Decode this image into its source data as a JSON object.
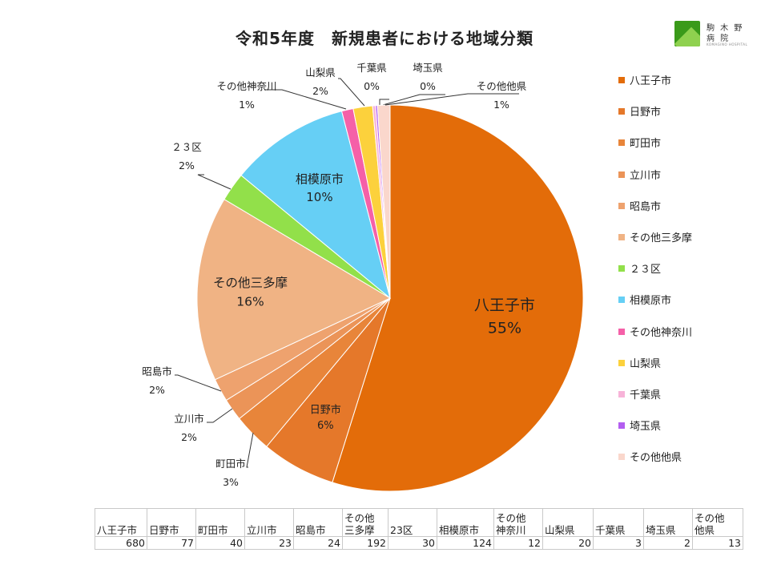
{
  "title": "令和5年度　新規患者における地域分類",
  "logo": {
    "line1": "駒 木 野",
    "line2": "病 院",
    "line3": "KOMAGINO HOSPITAL"
  },
  "chart_data": {
    "type": "pie",
    "title": "令和5年度　新規患者における地域分類",
    "legend_position": "right",
    "slices": [
      {
        "name": "八王子市",
        "value": 680,
        "label": "八王子市",
        "pct_label": "55%",
        "color": "#e36c09"
      },
      {
        "name": "日野市",
        "value": 77,
        "label": "日野市",
        "pct_label": "6%",
        "color": "#e5782a"
      },
      {
        "name": "町田市",
        "value": 40,
        "label": "町田市",
        "pct_label": "3%",
        "color": "#e8853a"
      },
      {
        "name": "立川市",
        "value": 23,
        "label": "立川市",
        "pct_label": "2%",
        "color": "#eb9458"
      },
      {
        "name": "昭島市",
        "value": 24,
        "label": "昭島市",
        "pct_label": "2%",
        "color": "#eea26e"
      },
      {
        "name": "その他三多摩",
        "value": 192,
        "label": "その他三多摩",
        "pct_label": "16%",
        "color": "#f0b384"
      },
      {
        "name": "２３区",
        "value": 30,
        "label": "２３区",
        "pct_label": "2%",
        "color": "#92e04a"
      },
      {
        "name": "相模原市",
        "value": 124,
        "label": "相模原市",
        "pct_label": "10%",
        "color": "#66cff5"
      },
      {
        "name": "その他神奈川",
        "value": 12,
        "label": "その他神奈川",
        "pct_label": "1%",
        "color": "#f560a8"
      },
      {
        "name": "山梨県",
        "value": 20,
        "label": "山梨県",
        "pct_label": "2%",
        "color": "#fcd13c"
      },
      {
        "name": "千葉県",
        "value": 3,
        "label": "千葉県",
        "pct_label": "0%",
        "color": "#f7b3d8"
      },
      {
        "name": "埼玉県",
        "value": 2,
        "label": "埼玉県",
        "pct_label": "0%",
        "color": "#b35ef0"
      },
      {
        "name": "その他他県",
        "value": 13,
        "label": "その他他県",
        "pct_label": "1%",
        "color": "#fad7cc"
      }
    ]
  },
  "table": {
    "headers": [
      "八王子市",
      "日野市",
      "町田市",
      "立川市",
      "昭島市",
      "その他\n三多摩",
      "23区",
      "相模原市",
      "その他\n神奈川",
      "山梨県",
      "千葉県",
      "埼玉県",
      "その他\n他県"
    ],
    "values": [
      "680",
      "77",
      "40",
      "23",
      "24",
      "192",
      "30",
      "124",
      "12",
      "20",
      "3",
      "2",
      "13"
    ]
  }
}
